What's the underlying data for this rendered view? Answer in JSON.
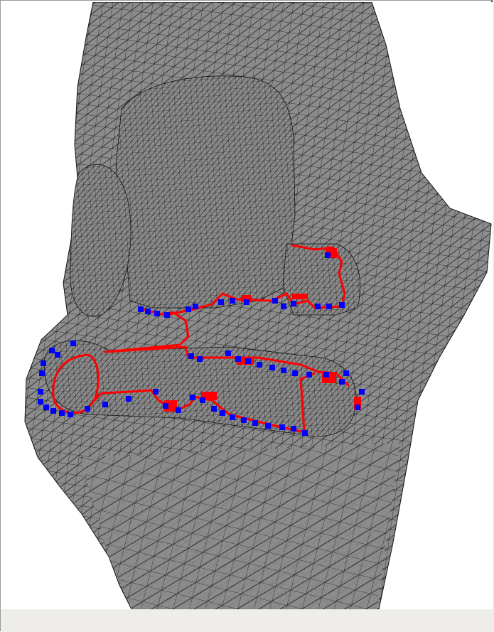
{
  "scene": {
    "background_color": "#ffffff",
    "mesh_fill_color": "#8c8c8c",
    "mesh_line_color": "#111111",
    "contour_color": "#ff0000",
    "marker_color": "#0000ff"
  },
  "statusbar": {
    "background_color": "#efede9"
  }
}
